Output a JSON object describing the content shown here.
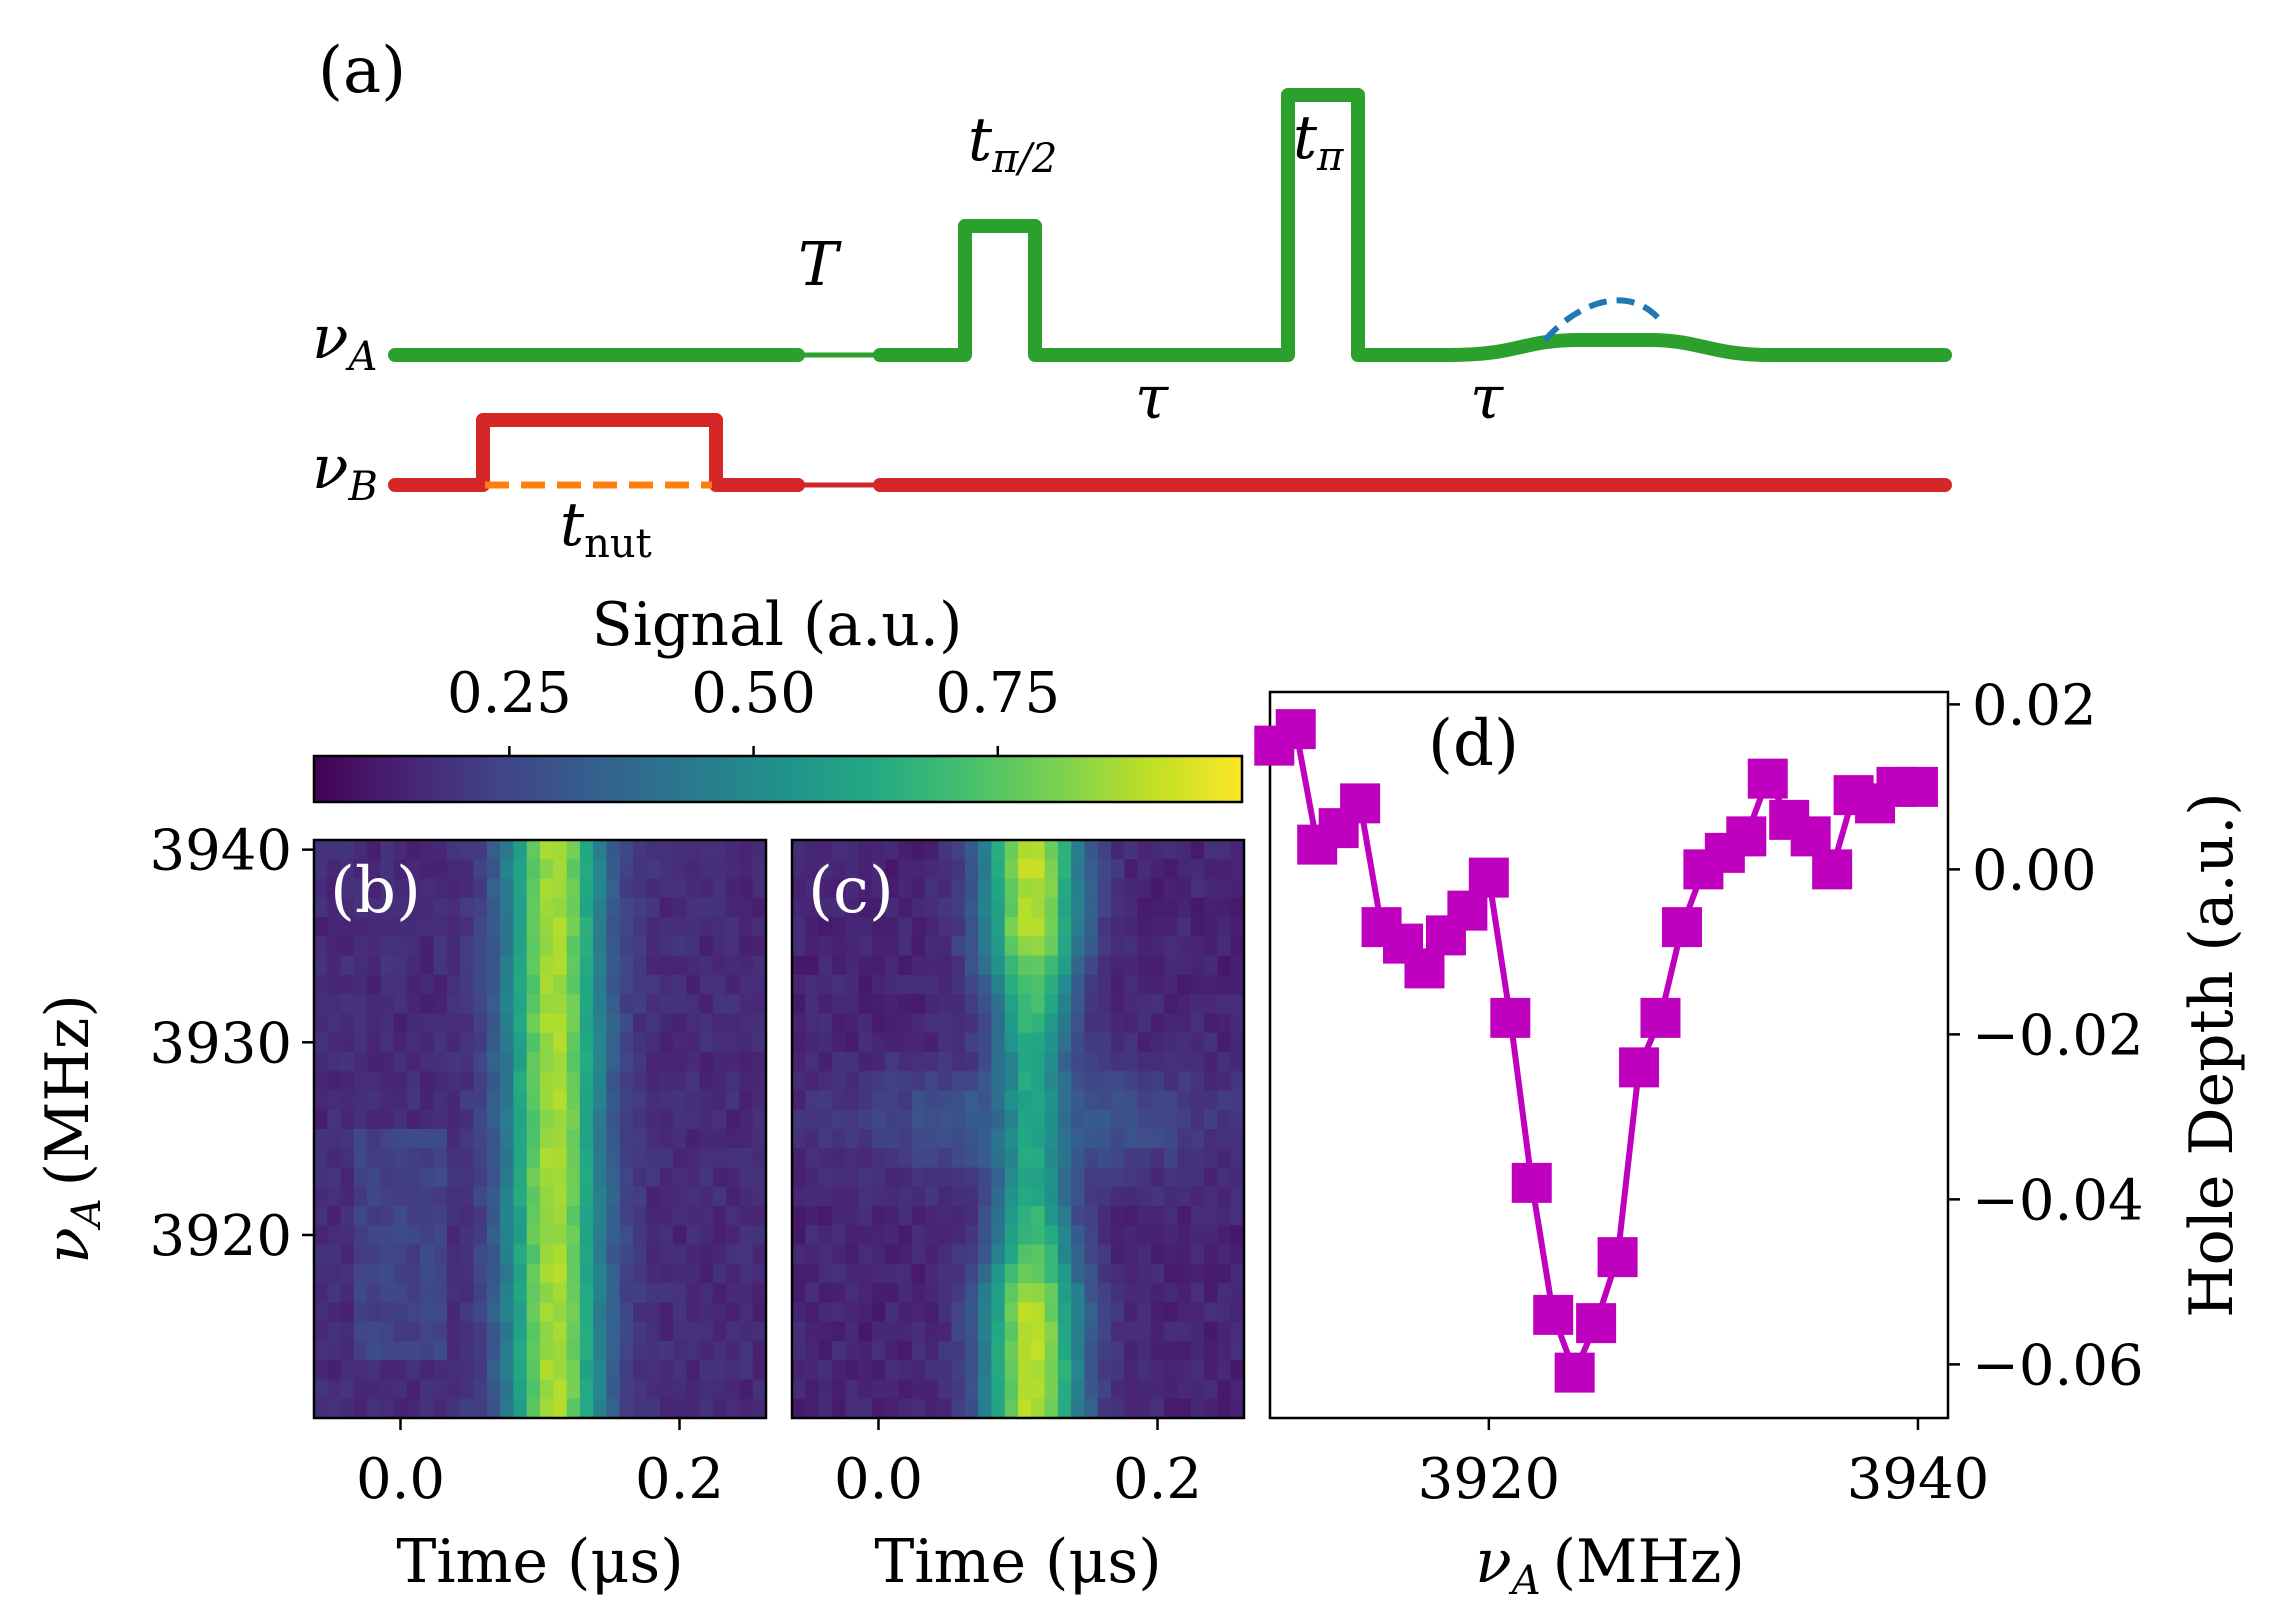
{
  "chart_data": [
    {
      "panel": "(a)",
      "type": "pulse-sequence",
      "channels": [
        {
          "name": "ν",
          "subscript": "A",
          "color": "#2ca02c"
        },
        {
          "name": "ν",
          "subscript": "B",
          "color": "#d62728"
        }
      ],
      "labels": {
        "T": "T",
        "t_half_pi": {
          "base": "t",
          "sub": "π/2"
        },
        "t_pi": {
          "base": "t",
          "sub": "π"
        },
        "tau": "τ",
        "t_nut": {
          "base": "t",
          "sub": "nut"
        }
      },
      "echo_color": "#1f77b4",
      "nut_dash_color": "#ff7f0e"
    },
    {
      "panel": "(b)",
      "type": "heatmap",
      "colormap": "viridis",
      "xlabel": "Time (μs)",
      "ylabel_base": "ν",
      "ylabel_sub": "A",
      "ylabel_unit": "(MHz)",
      "xlim": [
        -0.062,
        0.262
      ],
      "ylim": [
        3910.5,
        3940.5
      ],
      "xticks": [
        0.0,
        0.2
      ],
      "xtick_labels": [
        "0.0",
        "0.2"
      ],
      "yticks": [
        3920,
        3930,
        3940
      ],
      "ytick_labels": [
        "3920",
        "3930",
        "3940"
      ],
      "peak_time_us": 0.11,
      "peak_width_us": 0.035
    },
    {
      "panel": "(c)",
      "type": "heatmap",
      "colormap": "viridis",
      "xlabel": "Time (μs)",
      "xlim": [
        -0.062,
        0.262
      ],
      "ylim": [
        3910.5,
        3940.5
      ],
      "xticks": [
        0.0,
        0.2
      ],
      "xtick_labels": [
        "0.0",
        "0.2"
      ],
      "peak_time_us": 0.11,
      "hole_center_MHz": 3926
    },
    {
      "type": "colorbar",
      "label": "Signal (a.u.)",
      "range": [
        0.05,
        1.0
      ],
      "ticks": [
        0.25,
        0.5,
        0.75
      ],
      "tick_labels": [
        "0.25",
        "0.50",
        "0.75"
      ]
    },
    {
      "panel": "(d)",
      "type": "line",
      "marker": "square",
      "color": "#bf00bf",
      "xlabel_base": "ν",
      "xlabel_sub": "A",
      "xlabel_unit": "(MHz)",
      "ylabel": "Hole Depth (a.u.)",
      "xlim": [
        3909.8,
        3941.4
      ],
      "ylim": [
        -0.0665,
        0.0215
      ],
      "xticks": [
        3920,
        3940
      ],
      "xtick_labels": [
        "3920",
        "3940"
      ],
      "yticks": [
        0.02,
        0.0,
        -0.02,
        -0.04,
        -0.06
      ],
      "ytick_labels": [
        "0.02",
        "0.00",
        "−0.02",
        "−0.04",
        "−0.06"
      ],
      "x": [
        3910.0,
        3911.0,
        3912.0,
        3913.0,
        3914.0,
        3915.0,
        3916.0,
        3917.0,
        3918.0,
        3919.0,
        3920.0,
        3921.0,
        3922.0,
        3923.0,
        3924.0,
        3925.0,
        3926.0,
        3927.0,
        3928.0,
        3929.0,
        3930.0,
        3931.0,
        3932.0,
        3933.0,
        3934.0,
        3935.0,
        3936.0,
        3937.0,
        3938.0,
        3939.0,
        3940.0
      ],
      "y": [
        0.015,
        0.017,
        0.003,
        0.005,
        0.008,
        -0.007,
        -0.009,
        -0.012,
        -0.008,
        -0.005,
        -0.001,
        -0.018,
        -0.038,
        -0.054,
        -0.061,
        -0.055,
        -0.047,
        -0.024,
        -0.018,
        -0.007,
        0.0,
        0.002,
        0.004,
        0.011,
        0.006,
        0.004,
        0.0,
        0.009,
        0.008,
        0.01,
        0.01
      ]
    }
  ]
}
